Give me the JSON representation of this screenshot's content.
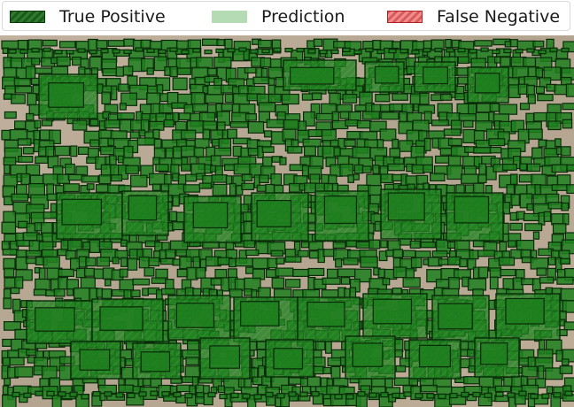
{
  "legend": {
    "items": [
      {
        "label": "True Positive",
        "swatch": "hatched-green"
      },
      {
        "label": "Prediction",
        "swatch": "light-green"
      },
      {
        "label": "False Negative",
        "swatch": "hatched-red"
      }
    ]
  },
  "colors": {
    "true_positive_fill": "#1f7f1f",
    "true_positive_edge": "#0a2a0a",
    "prediction_fill": "#b5dbb5",
    "false_negative_fill": "#f28b8b",
    "ground": "#b9ab98"
  },
  "image": {
    "description_icon": "aerial-orchard-image"
  }
}
